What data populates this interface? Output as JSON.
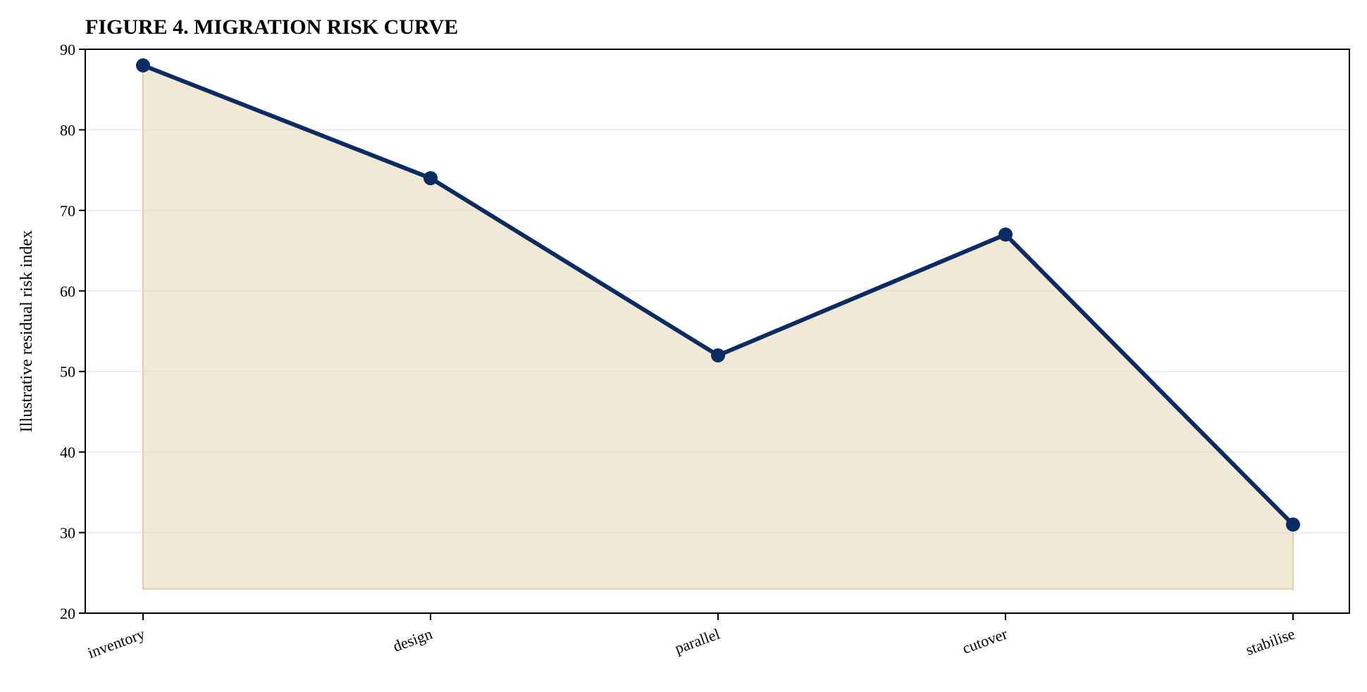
{
  "chart_data": {
    "type": "area",
    "title": "FIGURE 4. MIGRATION RISK CURVE",
    "xlabel": "",
    "ylabel": "Illustrative residual risk index",
    "categories": [
      "inventory",
      "design",
      "parallel",
      "cutover",
      "stabilise"
    ],
    "series": [
      {
        "values": [
          88,
          74,
          52,
          67,
          31
        ]
      }
    ],
    "fill_baseline": 23,
    "ylim": [
      20,
      90
    ],
    "yticks": [
      20,
      30,
      40,
      50,
      60,
      70,
      80,
      90
    ],
    "grid": "horizontal",
    "colors": {
      "line": "#0a2c63",
      "fill": "#e9dcc0",
      "grid": "#e6e6e6",
      "axes": "#000000"
    }
  }
}
